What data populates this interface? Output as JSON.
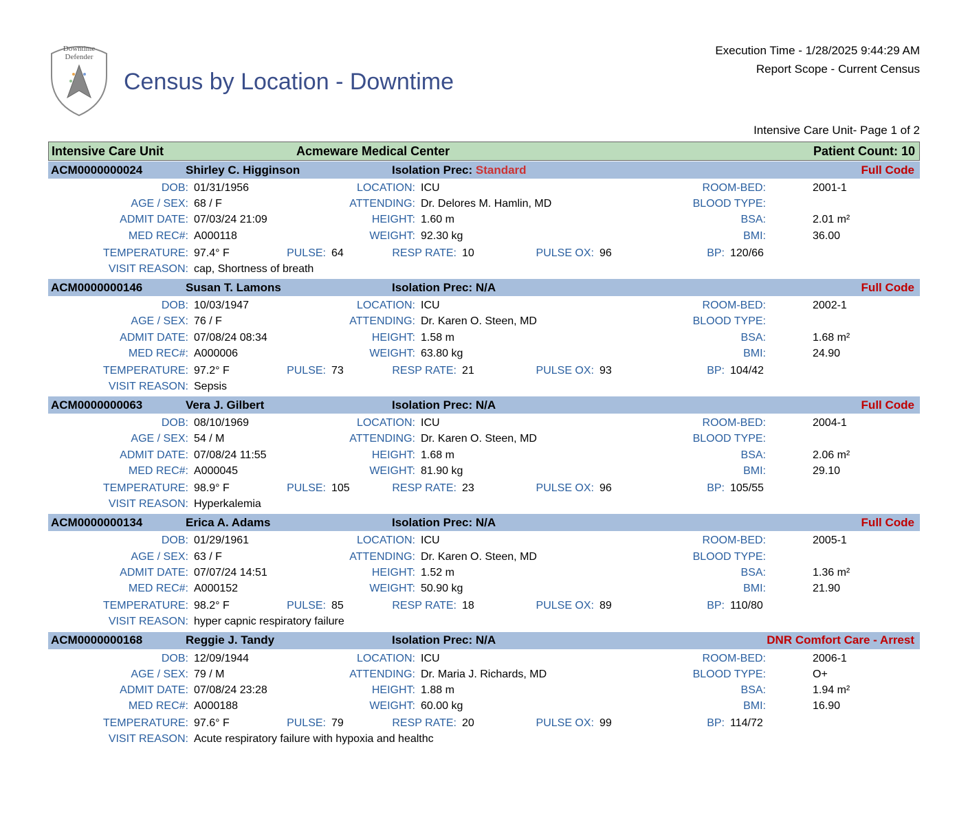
{
  "header": {
    "logo_top_text": "Downtime",
    "logo_bottom_text": "Defender",
    "title": "Census by Location - Downtime",
    "execution_time_label": "Execution Time - ",
    "execution_time": "1/28/2025 9:44:29 AM",
    "report_scope_label": "Report Scope - ",
    "report_scope": "Current Census",
    "page_label": "Intensive Care Unit- Page 1 of 2"
  },
  "colors": {
    "unit_header_bg": "#bcdcbc",
    "patient_header_bg": "#a7bedc",
    "label_color": "#2a5fa0",
    "title_color": "#3a4e8a",
    "code_red": "#c00000",
    "iso_standard": "#cc3333"
  },
  "unit": {
    "name": "Intensive Care Unit",
    "facility": "Acmeware Medical Center",
    "count_label": "Patient Count: ",
    "count": "10"
  },
  "labels": {
    "dob": "DOB:",
    "age_sex": "AGE / SEX:",
    "admit_date": "ADMIT DATE:",
    "med_rec": "MED REC#:",
    "temperature": "TEMPERATURE:",
    "visit_reason": "VISIT REASON:",
    "location": "LOCATION:",
    "attending": "ATTENDING:",
    "height": "HEIGHT:",
    "weight": "WEIGHT:",
    "pulse": "PULSE:",
    "resp_rate": "RESP RATE:",
    "room_bed": "ROOM-BED:",
    "blood_type": "BLOOD TYPE:",
    "bsa": "BSA:",
    "bmi": "BMI:",
    "pulse_ox": "PULSE OX:",
    "bp": "BP:",
    "iso_prec": "Isolation Prec:"
  },
  "patients": [
    {
      "id": "ACM0000000024",
      "name": "Shirley C. Higginson",
      "iso": "Standard",
      "iso_class": "standard",
      "code": "Full Code",
      "dob": "01/31/1956",
      "age_sex": "68 / F",
      "admit": "07/03/24 21:09",
      "med_rec": "A000118",
      "temp": "97.4° F",
      "reason": "cap, Shortness of breath",
      "location": "ICU",
      "attending": "Dr. Delores M. Hamlin, MD",
      "height": "1.60 m",
      "weight": "92.30 kg",
      "pulse": "64",
      "resp": "10",
      "room_bed": "2001-1",
      "blood_type": "",
      "bsa": "2.01 m²",
      "bmi": "36.00",
      "pulse_ox": "96",
      "bp": "120/66"
    },
    {
      "id": "ACM0000000146",
      "name": "Susan T. Lamons",
      "iso": "N/A",
      "iso_class": "na",
      "code": "Full Code",
      "dob": "10/03/1947",
      "age_sex": "76 / F",
      "admit": "07/08/24 08:34",
      "med_rec": "A000006",
      "temp": "97.2° F",
      "reason": "Sepsis",
      "location": "ICU",
      "attending": "Dr. Karen O. Steen, MD",
      "height": "1.58 m",
      "weight": "63.80 kg",
      "pulse": "73",
      "resp": "21",
      "room_bed": "2002-1",
      "blood_type": "",
      "bsa": "1.68 m²",
      "bmi": "24.90",
      "pulse_ox": "93",
      "bp": "104/42"
    },
    {
      "id": "ACM0000000063",
      "name": "Vera J. Gilbert",
      "iso": "N/A",
      "iso_class": "na",
      "code": "Full Code",
      "dob": "08/10/1969",
      "age_sex": "54 / M",
      "admit": "07/08/24 11:55",
      "med_rec": "A000045",
      "temp": "98.9° F",
      "reason": "Hyperkalemia",
      "location": "ICU",
      "attending": "Dr. Karen O. Steen, MD",
      "height": "1.68 m",
      "weight": "81.90 kg",
      "pulse": "105",
      "resp": "23",
      "room_bed": "2004-1",
      "blood_type": "",
      "bsa": "2.06 m²",
      "bmi": "29.10",
      "pulse_ox": "96",
      "bp": "105/55"
    },
    {
      "id": "ACM0000000134",
      "name": "Erica A. Adams",
      "iso": "N/A",
      "iso_class": "na",
      "code": "Full Code",
      "dob": "01/29/1961",
      "age_sex": "63 / F",
      "admit": "07/07/24 14:51",
      "med_rec": "A000152",
      "temp": "98.2° F",
      "reason": "hyper capnic respiratory failure",
      "location": "ICU",
      "attending": "Dr. Karen O. Steen, MD",
      "height": "1.52 m",
      "weight": "50.90 kg",
      "pulse": "85",
      "resp": "18",
      "room_bed": "2005-1",
      "blood_type": "",
      "bsa": "1.36 m²",
      "bmi": "21.90",
      "pulse_ox": "89",
      "bp": "110/80"
    },
    {
      "id": "ACM0000000168",
      "name": "Reggie J. Tandy",
      "iso": "N/A",
      "iso_class": "na",
      "code": "DNR Comfort Care - Arrest",
      "dob": "12/09/1944",
      "age_sex": "79 / M",
      "admit": "07/08/24 23:28",
      "med_rec": "A000188",
      "temp": "97.6° F",
      "reason": "Acute respiratory failure with hypoxia and healthc",
      "location": "ICU",
      "attending": "Dr. Maria J. Richards, MD",
      "height": "1.88 m",
      "weight": "60.00 kg",
      "pulse": "79",
      "resp": "20",
      "room_bed": "2006-1",
      "blood_type": "O+",
      "bsa": "1.94 m²",
      "bmi": "16.90",
      "pulse_ox": "99",
      "bp": "114/72"
    }
  ]
}
